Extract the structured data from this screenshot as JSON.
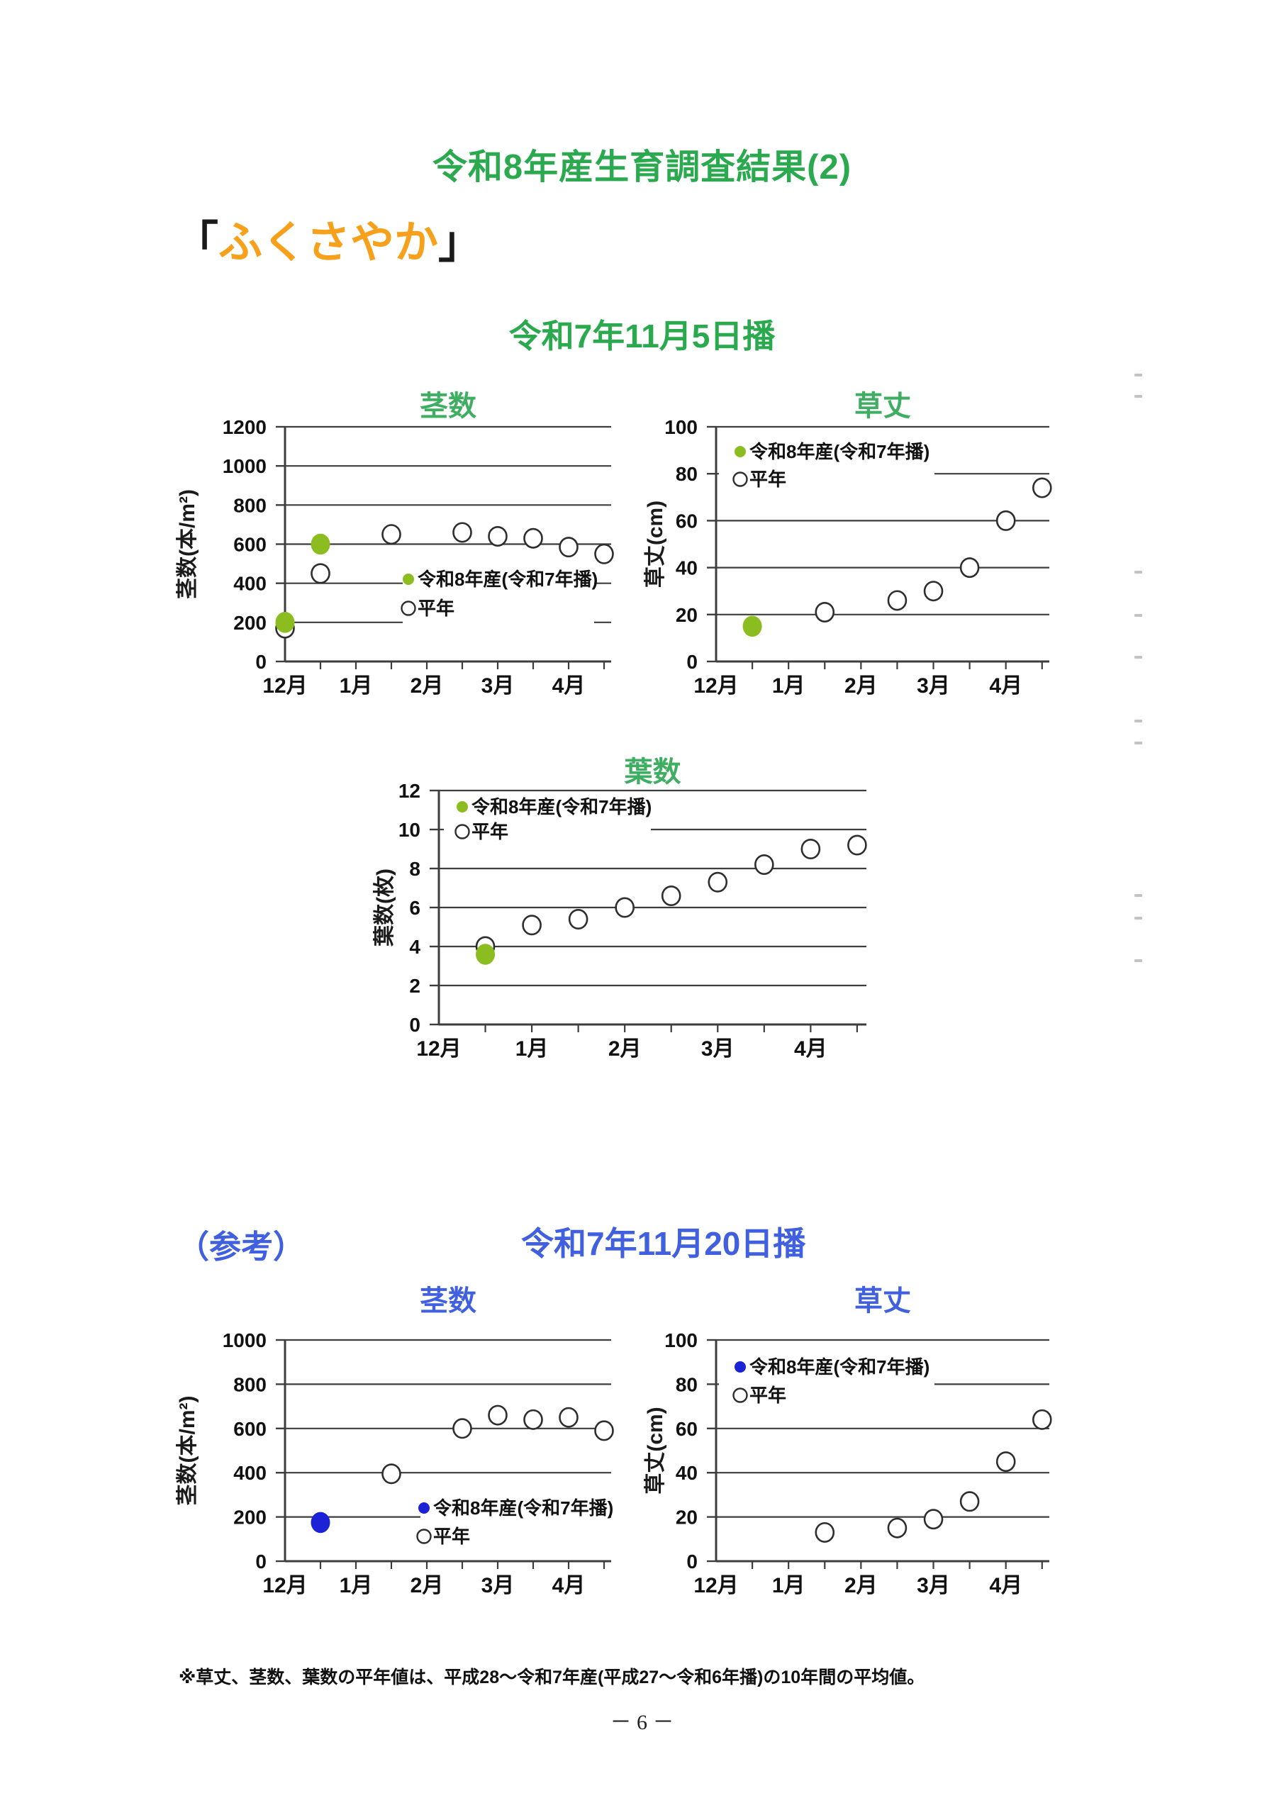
{
  "page": {
    "title": "令和8年産生育調査結果(2)",
    "variety": {
      "open": "「",
      "name": "ふくさやか",
      "close": "」"
    },
    "section1": {
      "subtitle": "令和7年11月5日播"
    },
    "section2": {
      "prefix": "（参考）",
      "subtitle": "令和7年11月20日播"
    },
    "footnote": "※草丈、茎数、葉数の平年値は、平成28～令和7年産(平成27～令和6年播)の10年間の平均値。",
    "page_number": "－ 6 －"
  },
  "colors": {
    "heading_green": "#2aa94f",
    "chart_title_green": "#3fae63",
    "heading_orange": "#f7a01b",
    "heading_blue": "#4060e0",
    "point_green": "#8cbd20",
    "point_blue": "#1c23d6",
    "grid": "#3d3d3d",
    "circle_stroke": "#2e2e2e"
  },
  "legend_labels": {
    "current": "令和8年産(令和7年播)",
    "normal": "平年"
  },
  "chart_data": [
    {
      "id": "stem-count-nov5",
      "type": "scatter",
      "title": "茎数",
      "title_color_key": "chart_title_green",
      "ylabel": "茎数(本/m²)",
      "ylim": [
        0,
        1200
      ],
      "ytick_step": 200,
      "x_months": [
        "12月",
        "1月",
        "2月",
        "3月",
        "4月"
      ],
      "xlim_months": 4.6,
      "grid": true,
      "series": [
        {
          "name": "令和8年産(令和7年播)",
          "marker": "filled",
          "color_key": "point_green",
          "points": [
            [
              0,
              200
            ],
            [
              0.5,
              600
            ]
          ]
        },
        {
          "name": "平年",
          "marker": "open",
          "points": [
            [
              0,
              170
            ],
            [
              0.5,
              450
            ],
            [
              1.5,
              650
            ],
            [
              2.5,
              660
            ],
            [
              3,
              640
            ],
            [
              3.5,
              630
            ],
            [
              4,
              585
            ],
            [
              4.5,
              550
            ]
          ]
        }
      ]
    },
    {
      "id": "plant-height-nov5",
      "type": "scatter",
      "title": "草丈",
      "title_color_key": "chart_title_green",
      "ylabel": "草丈(cm)",
      "ylim": [
        0,
        100
      ],
      "ytick_step": 20,
      "x_months": [
        "12月",
        "1月",
        "2月",
        "3月",
        "4月"
      ],
      "xlim_months": 4.6,
      "grid": true,
      "series": [
        {
          "name": "令和8年産(令和7年播)",
          "marker": "filled",
          "color_key": "point_green",
          "points": [
            [
              0.5,
              15
            ]
          ]
        },
        {
          "name": "平年",
          "marker": "open",
          "points": [
            [
              1.5,
              21
            ],
            [
              2.5,
              26
            ],
            [
              3,
              30
            ],
            [
              3.5,
              40
            ],
            [
              4,
              60
            ],
            [
              4.5,
              74
            ]
          ]
        }
      ]
    },
    {
      "id": "leaf-count-nov5",
      "type": "scatter",
      "title": "葉数",
      "title_color_key": "chart_title_green",
      "ylabel": "葉数(枚)",
      "ylim": [
        0,
        12
      ],
      "ytick_step": 2,
      "x_months": [
        "12月",
        "1月",
        "2月",
        "3月",
        "4月"
      ],
      "xlim_months": 4.6,
      "grid": true,
      "series": [
        {
          "name": "令和8年産(令和7年播)",
          "marker": "filled",
          "color_key": "point_green",
          "points": [
            [
              0.5,
              3.6
            ]
          ]
        },
        {
          "name": "平年",
          "marker": "open",
          "points": [
            [
              0.5,
              4.0
            ],
            [
              1,
              5.1
            ],
            [
              1.5,
              5.4
            ],
            [
              2,
              6.0
            ],
            [
              2.5,
              6.6
            ],
            [
              3,
              7.3
            ],
            [
              3.5,
              8.2
            ],
            [
              4,
              9.0
            ],
            [
              4.5,
              9.2
            ]
          ]
        }
      ]
    },
    {
      "id": "stem-count-nov20",
      "type": "scatter",
      "title": "茎数",
      "title_color_key": "heading_blue",
      "ylabel": "茎数(本/m²)",
      "ylim": [
        0,
        1000
      ],
      "ytick_step": 200,
      "x_months": [
        "12月",
        "1月",
        "2月",
        "3月",
        "4月"
      ],
      "xlim_months": 4.6,
      "grid": true,
      "series": [
        {
          "name": "令和8年産(令和7年播)",
          "marker": "filled",
          "color_key": "point_blue",
          "points": [
            [
              0.5,
              175
            ]
          ]
        },
        {
          "name": "平年",
          "marker": "open",
          "points": [
            [
              1.5,
              395
            ],
            [
              2.5,
              600
            ],
            [
              3,
              660
            ],
            [
              3.5,
              640
            ],
            [
              4,
              650
            ],
            [
              4.5,
              590
            ]
          ]
        }
      ]
    },
    {
      "id": "plant-height-nov20",
      "type": "scatter",
      "title": "草丈",
      "title_color_key": "heading_blue",
      "ylabel": "草丈(cm)",
      "ylim": [
        0,
        100
      ],
      "ytick_step": 20,
      "x_months": [
        "12月",
        "1月",
        "2月",
        "3月",
        "4月"
      ],
      "xlim_months": 4.6,
      "grid": true,
      "series": [
        {
          "name": "令和8年産(令和7年播)",
          "marker": "filled",
          "color_key": "point_blue",
          "points": []
        },
        {
          "name": "平年",
          "marker": "open",
          "points": [
            [
              1.5,
              13
            ],
            [
              2.5,
              15
            ],
            [
              3,
              19
            ],
            [
              3.5,
              27
            ],
            [
              4,
              45
            ],
            [
              4.5,
              64
            ]
          ]
        }
      ]
    }
  ]
}
